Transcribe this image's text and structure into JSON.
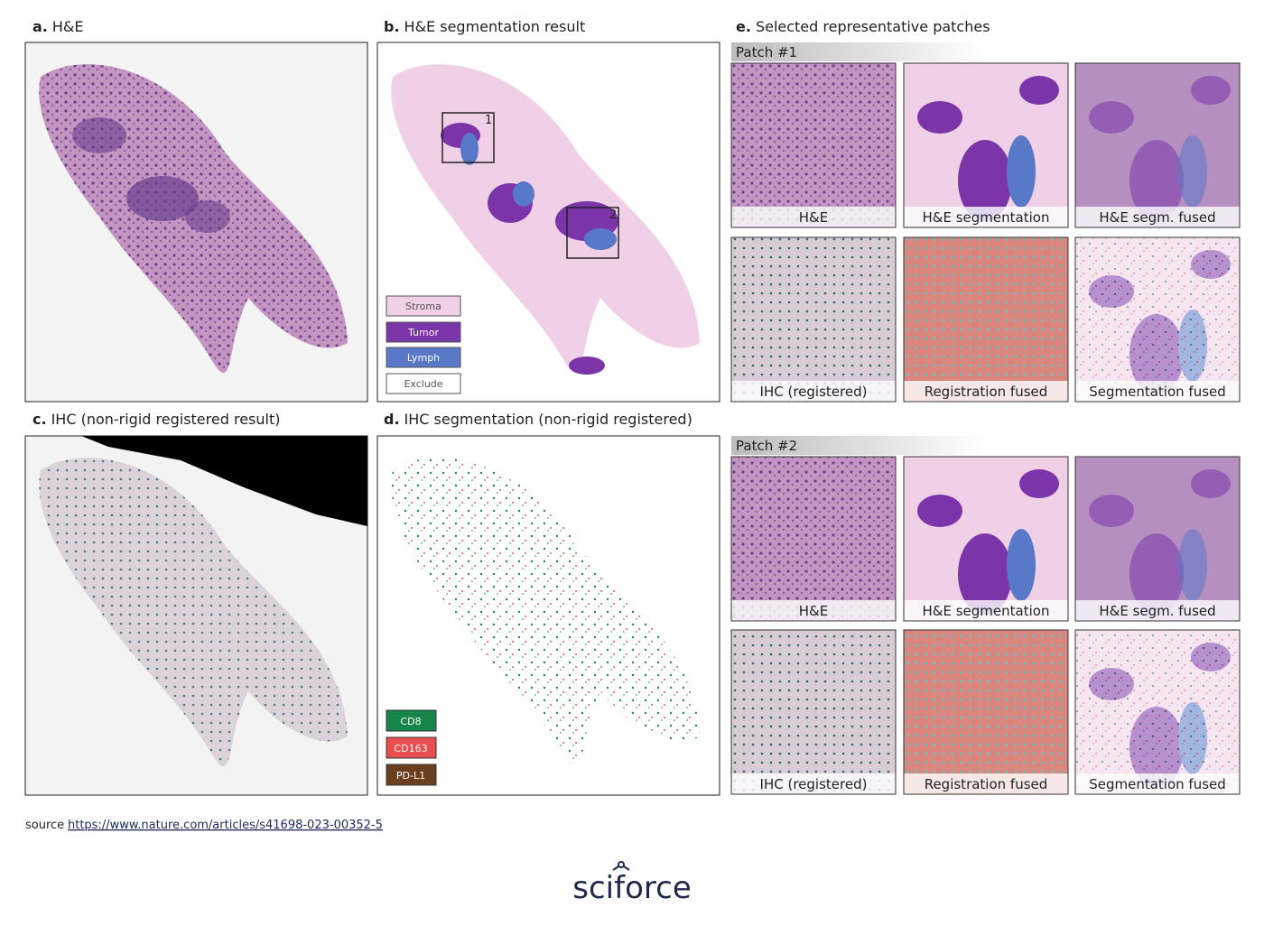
{
  "panels": [
    {
      "label": "a.",
      "title": "H&E"
    },
    {
      "label": "b.",
      "title": "H&E segmentation result"
    },
    {
      "label": "c.",
      "title": "IHC (non-rigid registered result)"
    },
    {
      "label": "d.",
      "title": "IHC segmentation (non-rigid registered)"
    },
    {
      "label": "e.",
      "title": "Selected representative patches"
    }
  ],
  "segmentation_legend": [
    "Stroma",
    "Tumor",
    "Lymph",
    "Exclude"
  ],
  "region_labels": [
    "1",
    "2"
  ],
  "ihc_legend": [
    "CD8",
    "CD163",
    "PD-L1"
  ],
  "patches": [
    {
      "title": "Patch #1",
      "captions": [
        "H&E",
        "H&E segmentation",
        "H&E segm. fused",
        "IHC (registered)",
        "Registration fused",
        "Segmentation fused"
      ]
    },
    {
      "title": "Patch #2",
      "captions": [
        "H&E",
        "H&E segmentation",
        "H&E segm. fused",
        "IHC (registered)",
        "Registration fused",
        "Segmentation fused"
      ]
    }
  ],
  "source": {
    "label": "source",
    "url": "https://www.nature.com/articles/s41698-023-00352-5"
  },
  "logo": "sciforce"
}
